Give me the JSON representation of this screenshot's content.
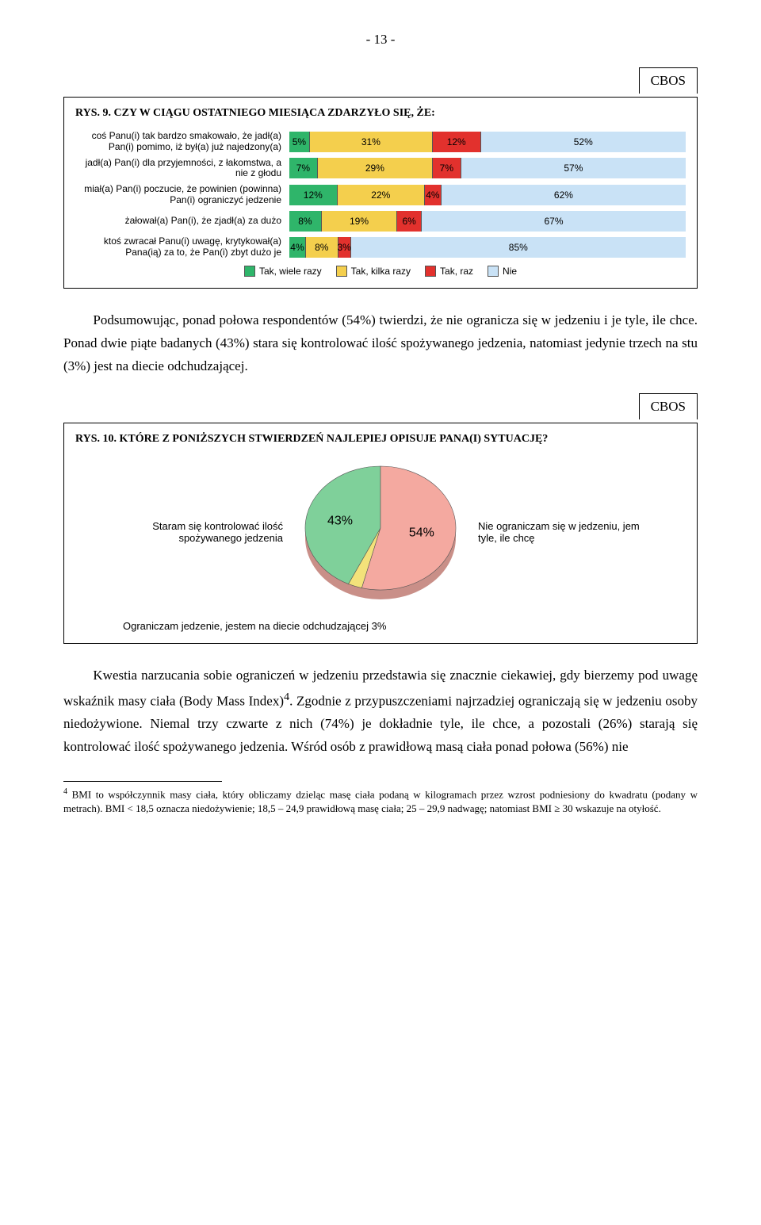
{
  "page_number": "- 13 -",
  "cbos_label": "CBOS",
  "fig9": {
    "title": "RYS. 9. CZY W CIĄGU OSTATNIEGO MIESIĄCA ZDARZYŁO SIĘ, ŻE:",
    "colors": {
      "c1": "#2fb56a",
      "c2": "#f4cf4d",
      "c3": "#e2312d",
      "c4": "#c9e2f6",
      "grid": "#555555",
      "bg": "#ffffff"
    },
    "rows": [
      {
        "label": "coś Panu(i) tak bardzo smakowało, że jadł(a) Pan(i) pomimo, iż był(a) już najedzony(a)",
        "vals": [
          5,
          31,
          12,
          52
        ]
      },
      {
        "label": "jadł(a) Pan(i) dla przyjemności, z łakomstwa, a nie z głodu",
        "vals": [
          7,
          29,
          7,
          57
        ]
      },
      {
        "label": "miał(a) Pan(i) poczucie, że powinien (powinna) Pan(i) ograniczyć jedzenie",
        "vals": [
          12,
          22,
          4,
          62
        ]
      },
      {
        "label": "żałował(a) Pan(i), że zjadł(a) za dużo",
        "vals": [
          8,
          19,
          6,
          67
        ]
      },
      {
        "label": "ktoś zwracał Panu(i) uwagę, krytykował(a) Pana(ią) za to, że Pan(i) zbyt dużo je",
        "vals": [
          4,
          8,
          3,
          85
        ]
      }
    ],
    "legend": [
      "Tak, wiele razy",
      "Tak, kilka razy",
      "Tak, raz",
      "Nie"
    ]
  },
  "para1": "Podsumowując, ponad połowa respondentów (54%) twierdzi, że nie ogranicza się w jedzeniu i je tyle, ile chce. Ponad dwie piąte badanych (43%) stara się kontrolować ilość spożywanego jedzenia, natomiast jedynie trzech na stu (3%) jest na diecie odchudzającej.",
  "fig10": {
    "title": "RYS. 10. KTÓRE Z PONIŻSZYCH STWIERDZEŃ NAJLEPIEJ OPISUJE PANA(I) SYTUACJĘ?",
    "slices": [
      {
        "label": "Staram się kontrolować ilość spożywanego jedzenia",
        "pct": 43,
        "color": "#7fd09a",
        "pct_text": "43%"
      },
      {
        "label": "Nie ograniczam się w jedzeniu, jem tyle, ile chcę",
        "pct": 54,
        "color": "#f4a9a0",
        "pct_text": "54%"
      },
      {
        "label": "Ograniczam jedzenie, jestem na diecie odchudzającej",
        "pct": 3,
        "color": "#f3e27a",
        "pct_text": "3%"
      }
    ],
    "bg": "#ffffff"
  },
  "para2": "Kwestia narzucania sobie ograniczeń w jedzeniu przedstawia się znacznie ciekawiej, gdy bierzemy pod uwagę wskaźnik masy ciała (Body Mass Index)",
  "para2_cont": ". Zgodnie z przypuszczeniami najrzadziej ograniczają się w jedzeniu osoby niedożywione. Niemal trzy czwarte z nich (74%) je dokładnie tyle, ile chce, a pozostali (26%) starają się kontrolować ilość spożywanego jedzenia. Wśród osób z prawidłową masą ciała ponad połowa (56%) nie",
  "footnote_num": "4",
  "footnote": "BMI to współczynnik masy ciała, który obliczamy dzieląc masę ciała podaną w kilogramach przez wzrost podniesiony do kwadratu (podany w metrach). BMI < 18,5 oznacza niedożywienie; 18,5 – 24,9 prawidłową masę ciała; 25 – 29,9 nadwagę; natomiast BMI ≥ 30 wskazuje na otyłość."
}
